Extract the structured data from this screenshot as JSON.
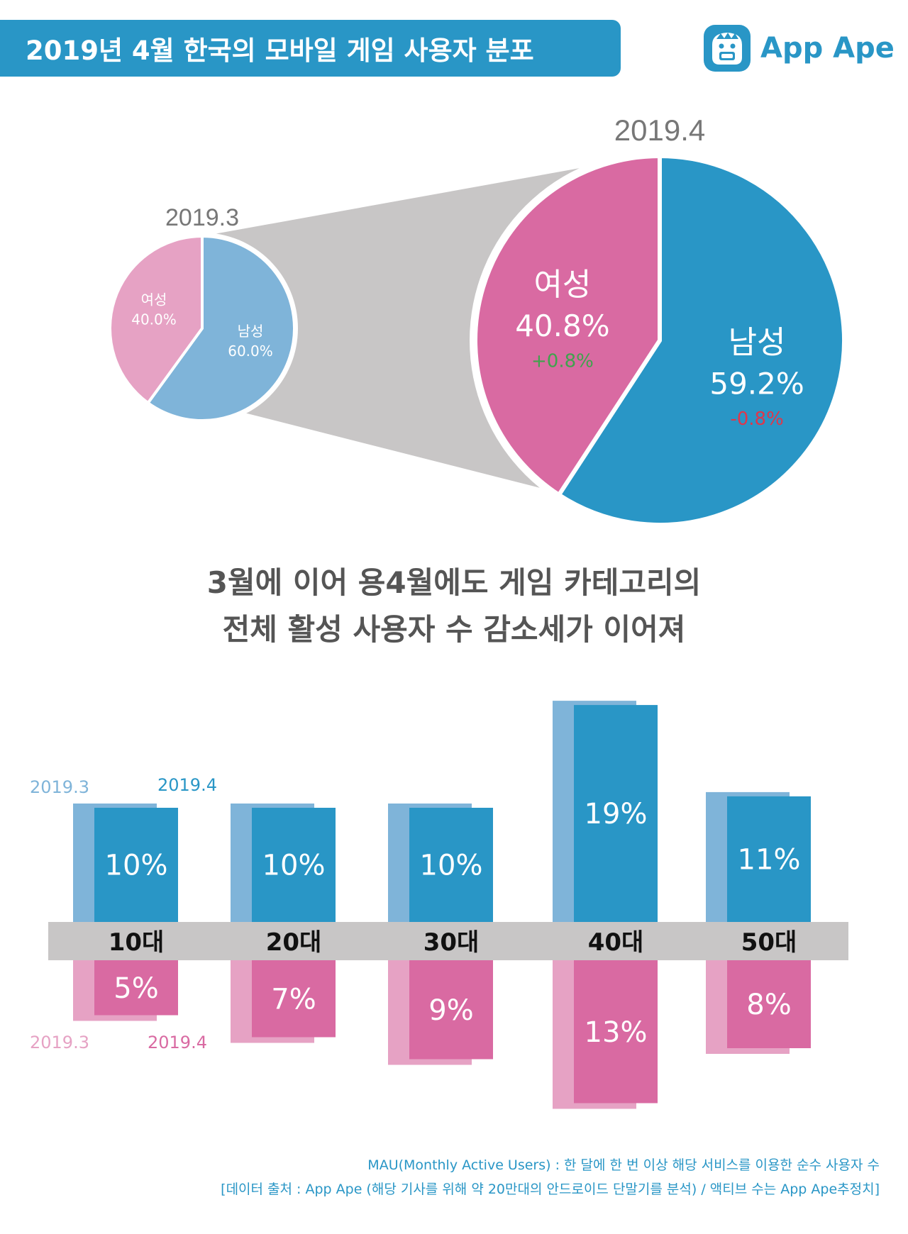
{
  "header": {
    "title": "2019년 4월 한국의 모바일 게임 사용자 분포",
    "logo_text": "App Ape",
    "logo_icon": "app-ape-monkey-icon",
    "logo_color": "#2996c6"
  },
  "colors": {
    "male_prev": "#7fb4d9",
    "male_cur": "#2996c6",
    "female_prev": "#e6a2c4",
    "female_cur": "#d96aa2",
    "connector": "#c8c6c6",
    "age_band": "#c8c6c6",
    "delta_up": "#3fa34d",
    "delta_down": "#e0364a"
  },
  "chart_data": [
    {
      "type": "pie",
      "period": "2019.3",
      "slices": [
        {
          "label": "남성",
          "value": 60.0,
          "value_label": "60.0%"
        },
        {
          "label": "여성",
          "value": 40.0,
          "value_label": "40.0%"
        }
      ]
    },
    {
      "type": "pie",
      "period": "2019.4",
      "slices": [
        {
          "label": "남성",
          "value": 59.2,
          "value_label": "59.2%",
          "change": "-0.8%"
        },
        {
          "label": "여성",
          "value": 40.8,
          "value_label": "40.8%",
          "change": "+0.8%"
        }
      ]
    },
    {
      "type": "bar",
      "categories": [
        "10대",
        "20대",
        "30대",
        "40대",
        "50대"
      ],
      "legend_male": {
        "prev": "2019.3",
        "cur": "2019.4"
      },
      "legend_female": {
        "prev": "2019.3",
        "cur": "2019.4"
      },
      "series": [
        {
          "name": "2019.3",
          "group": "male",
          "values": [
            10,
            10,
            10,
            19,
            11
          ]
        },
        {
          "name": "2019.4",
          "group": "male",
          "values": [
            10,
            10,
            10,
            19,
            11
          ],
          "labels": [
            "10%",
            "10%",
            "10%",
            "19%",
            "11%"
          ]
        },
        {
          "name": "2019.3",
          "group": "female",
          "values": [
            5,
            7,
            9,
            13,
            8
          ]
        },
        {
          "name": "2019.4",
          "group": "female",
          "values": [
            5,
            7,
            9,
            13,
            8
          ],
          "labels": [
            "5%",
            "7%",
            "9%",
            "13%",
            "8%"
          ]
        }
      ]
    }
  ],
  "headline": {
    "line1": "3월에 이어 용4월에도 게임 카테고리의",
    "line2": "전체 활성 사용자 수 감소세가 이어져"
  },
  "footnotes": {
    "line1": "MAU(Monthly Active Users) : 한 달에 한 번 이상 해당 서비스를 이용한 순수 사용자 수",
    "line2": "[데이터 출처 : App Ape (해당 기사를 위해 약 20만대의 안드로이드 단말기를 분석) / 액티브 수는 App Ape추정치]"
  }
}
